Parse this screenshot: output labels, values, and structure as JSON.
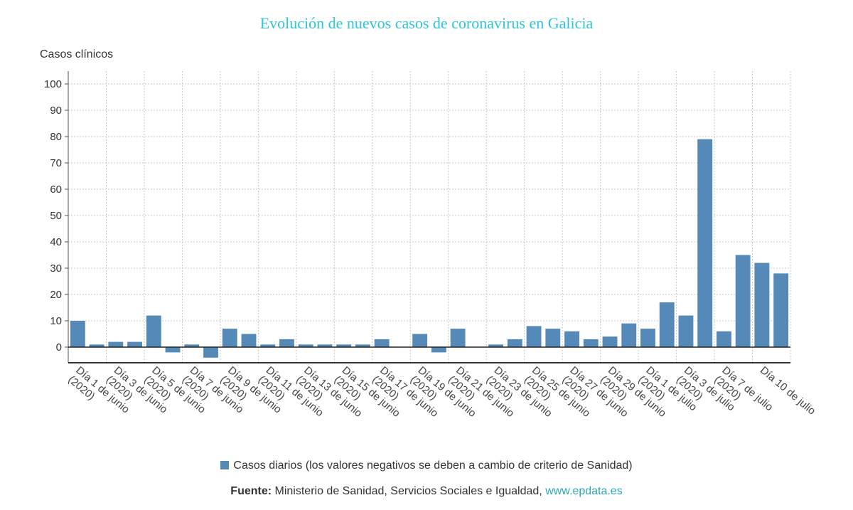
{
  "colors": {
    "bar": "#5589b7",
    "title": "#2ec4d8",
    "link": "#2aa6b8"
  },
  "chart_data": {
    "type": "bar",
    "title": "Evolución de nuevos casos de coronavirus en Galicia",
    "ylabel": "Casos clínicos",
    "ylim": [
      0,
      100
    ],
    "yticks": [
      0,
      10,
      20,
      30,
      40,
      50,
      60,
      70,
      80,
      90,
      100
    ],
    "grid": true,
    "legend_position": "bottom",
    "tick_labels": [
      "Día 1 de junio (2020)",
      "Día 3 de junio (2020)",
      "Día 5 de junio (2020)",
      "Día 7 de junio (2020)",
      "Día 9 de junio (2020)",
      "Día 11 de junio (2020)",
      "Día 13 de junio (2020)",
      "Día 15 de junio (2020)",
      "Día 17 de junio (2020)",
      "Día 19 de junio (2020)",
      "Día 21 de junio (2020)",
      "Día 23 de junio (2020)",
      "Día 25 de junio (2020)",
      "Día 27 de junio (2020)",
      "Día 29 de junio (2020)",
      "Día 1 de julio (2020)",
      "Día 3 de julio (2020)",
      "Día 7 de julio (2020)",
      "Día 10 de julio"
    ],
    "series": [
      {
        "name": "Casos diarios (los valores negativos se deben a cambio de criterio de Sanidad)",
        "values": [
          10,
          1,
          2,
          2,
          12,
          -2,
          1,
          -4,
          7,
          5,
          1,
          3,
          1,
          1,
          1,
          1,
          3,
          0,
          5,
          -2,
          7,
          0,
          1,
          3,
          8,
          7,
          6,
          3,
          4,
          9,
          7,
          17,
          12,
          79,
          6,
          35,
          32,
          28
        ]
      }
    ]
  },
  "legend": {
    "label": "Casos diarios (los valores negativos se deben a cambio de criterio de Sanidad)"
  },
  "source": {
    "prefix": "Fuente:",
    "text": " Ministerio de Sanidad, Servicios Sociales e Igualdad, ",
    "link": "www.epdata.es"
  }
}
